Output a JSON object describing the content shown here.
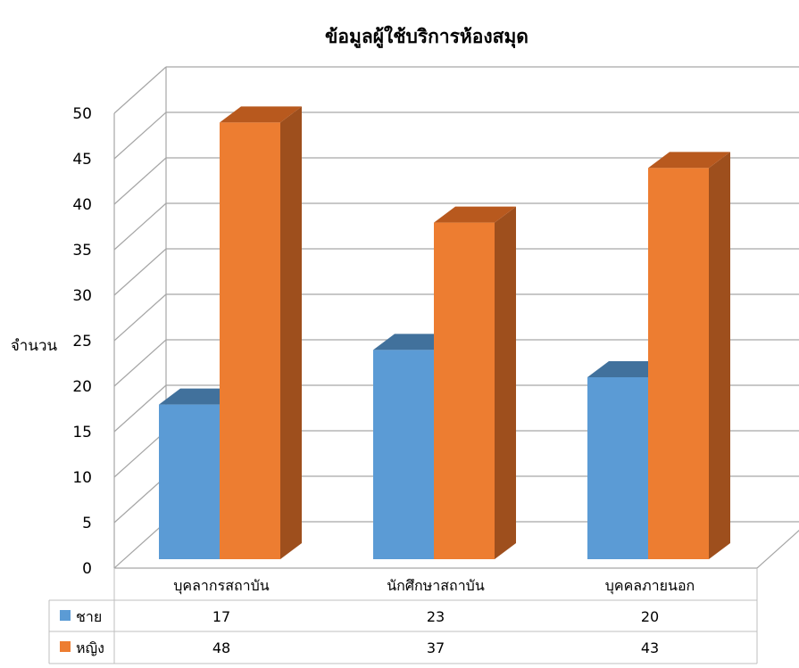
{
  "chart_data": {
    "type": "bar",
    "title": "ข้อมูลผู้ใช้บริการห้องสมุด",
    "ylabel": "จำนวน",
    "xlabel": "",
    "ylim": [
      0,
      50
    ],
    "yticks": [
      0,
      5,
      10,
      15,
      20,
      25,
      30,
      35,
      40,
      45,
      50
    ],
    "categories": [
      "บุคลากรสถาบัน",
      "นักศึกษาสถาบัน",
      "บุคคลภายนอก"
    ],
    "series": [
      {
        "name": "ชาย",
        "values": [
          17,
          23,
          20
        ],
        "color": "#5B9BD5",
        "top_color": "#41719C",
        "side_color": "#41719C"
      },
      {
        "name": "หญิง",
        "values": [
          48,
          37,
          43
        ],
        "color": "#ED7D31",
        "top_color": "#B8591E",
        "side_color": "#9E4F1D"
      }
    ],
    "grid": true,
    "data_table": true,
    "grid_color": "#A6A6A6"
  }
}
